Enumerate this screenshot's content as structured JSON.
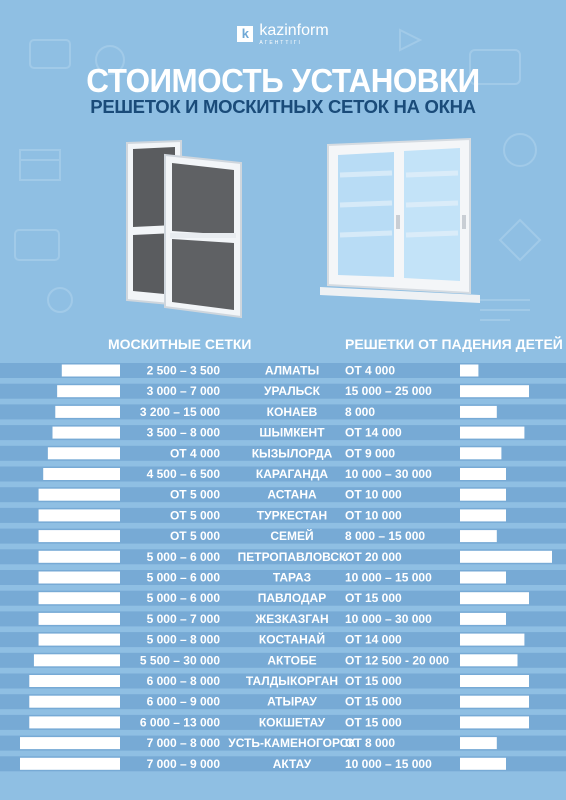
{
  "logo": {
    "mark": "k",
    "name": "kazinform",
    "tagline": "AГЕНТТІГІ"
  },
  "title": "СТОИМОСТЬ УСТАНОВКИ",
  "subtitle": "РЕШЕТОК И МОСКИТНЫХ СЕТОК НА ОКНА",
  "colors": {
    "background": "#8fbfe3",
    "row_band": "#6fa3d0",
    "bar": "#ffffff",
    "title": "#ffffff",
    "subtitle": "#1a4b79",
    "text_dark": "#1b3f66"
  },
  "chart_data": {
    "type": "bar",
    "layout": "butterfly",
    "titles": {
      "left": "МОСКИТНЫЕ СЕТКИ",
      "right": "РЕШЕТКИ ОТ ПАДЕНИЯ ДЕТЕЙ"
    },
    "categories": [
      "АЛМАТЫ",
      "УРАЛЬСК",
      "КОНАЕВ",
      "ШЫМКЕНТ",
      "КЫЗЫЛОРДА",
      "КАРАГАНДА",
      "АСТАНА",
      "ТУРКЕСТАН",
      "СЕМЕЙ",
      "ПЕТРОПАВЛОВСК",
      "ТАРАЗ",
      "ПАВЛОДАР",
      "ЖЕЗКАЗГАН",
      "КОСТАНАЙ",
      "АКТОБЕ",
      "ТАЛДЫКОРГАН",
      "АТЫРАУ",
      "КОКШЕТАУ",
      "УСТЬ-КАМЕНОГОРСК",
      "АКТАУ"
    ],
    "left_labels": [
      "2 500 – 3 500",
      "3 000 – 7 000",
      "3 200 – 15 000",
      "3 500 – 8 000",
      "ОТ 4 000",
      "4 500 – 6 500",
      "ОТ 5 000",
      "ОТ 5 000",
      "ОТ 5 000",
      "5 000 – 6 000",
      "5 000 – 6 000",
      "5 000 – 6 000",
      "5 000 – 7 000",
      "5 000 – 8 000",
      "5 500 – 30 000",
      "6 000 – 8 000",
      "6 000 – 9 000",
      "6 000 – 13 000",
      "7 000 – 8 000",
      "7 000 – 9 000"
    ],
    "right_labels": [
      "ОТ 4 000",
      "15 000 – 25 000",
      "8 000",
      "ОТ 14 000",
      "ОТ 9 000",
      "10 000 – 30 000",
      "ОТ 10 000",
      "ОТ 10 000",
      "8 000 – 15 000",
      "ОТ 20 000",
      "10 000 – 15 000",
      "ОТ 15 000",
      "10 000 – 30 000",
      "ОТ 14 000",
      "ОТ 12 500 - 20 000",
      "ОТ 15 000",
      "ОТ 15 000",
      "ОТ 15 000",
      "ОТ 8 000",
      "10 000 – 15 000"
    ],
    "series": [
      {
        "name": "МОСКИТНЫЕ СЕТКИ",
        "values": [
          2500,
          3000,
          3200,
          3500,
          4000,
          4500,
          5000,
          5000,
          5000,
          5000,
          5000,
          5000,
          5000,
          5000,
          5500,
          6000,
          6000,
          6000,
          7000,
          7000
        ]
      },
      {
        "name": "РЕШЕТКИ ОТ ПАДЕНИЯ ДЕТЕЙ",
        "values": [
          4000,
          15000,
          8000,
          14000,
          9000,
          10000,
          10000,
          10000,
          8000,
          20000,
          10000,
          15000,
          10000,
          14000,
          12500,
          15000,
          15000,
          15000,
          8000,
          10000
        ]
      }
    ]
  }
}
